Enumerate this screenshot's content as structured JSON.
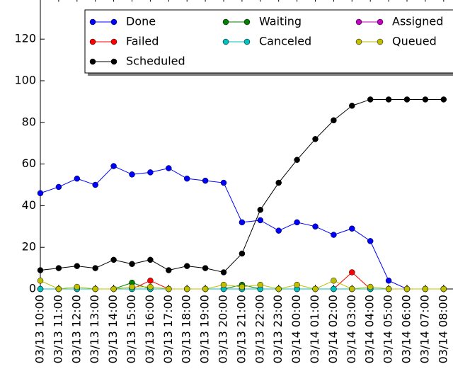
{
  "chart_data": {
    "type": "line",
    "categories": [
      "03/13 10:00",
      "03/13 11:00",
      "03/13 12:00",
      "03/13 13:00",
      "03/13 14:00",
      "03/13 15:00",
      "03/13 16:00",
      "03/13 17:00",
      "03/13 18:00",
      "03/13 19:00",
      "03/13 20:00",
      "03/13 21:00",
      "03/13 22:00",
      "03/13 23:00",
      "03/14 00:00",
      "03/14 01:00",
      "03/14 02:00",
      "03/14 03:00",
      "03/14 04:00",
      "03/14 05:00",
      "03/14 06:00",
      "03/14 07:00",
      "03/14 08:00"
    ],
    "series": [
      {
        "name": "Done",
        "color": "#0000ff",
        "values": [
          46,
          49,
          53,
          50,
          59,
          55,
          56,
          58,
          53,
          52,
          51,
          32,
          33,
          28,
          32,
          30,
          26,
          29,
          23,
          4,
          0,
          0,
          0
        ]
      },
      {
        "name": "Waiting",
        "color": "#007f00",
        "values": [
          0,
          0,
          0,
          0,
          0,
          3,
          0,
          0,
          0,
          0,
          0,
          2,
          0,
          0,
          0,
          0,
          0,
          0,
          0,
          0,
          0,
          0,
          0
        ]
      },
      {
        "name": "Assigned",
        "color": "#bf00bf",
        "values": [
          0,
          0,
          0,
          0,
          0,
          0,
          0,
          0,
          0,
          0,
          0,
          0,
          0,
          0,
          0,
          0,
          0,
          0,
          0,
          0,
          0,
          0,
          0
        ]
      },
      {
        "name": "Failed",
        "color": "#ff0000",
        "values": [
          0,
          0,
          0,
          0,
          0,
          0,
          4,
          0,
          0,
          0,
          0,
          0,
          0,
          0,
          0,
          0,
          0,
          8,
          0,
          0,
          0,
          0,
          0
        ]
      },
      {
        "name": "Canceled",
        "color": "#00bfbf",
        "values": [
          0,
          0,
          0,
          0,
          0,
          0,
          0,
          0,
          0,
          0,
          0,
          0,
          0,
          0,
          0,
          0,
          0,
          0,
          0,
          0,
          0,
          0,
          0
        ]
      },
      {
        "name": "Queued",
        "color": "#bfbf00",
        "values": [
          4,
          0,
          1,
          0,
          0,
          1,
          1,
          0,
          0,
          0,
          2,
          1,
          2,
          0,
          2,
          0,
          4,
          0,
          1,
          0,
          0,
          0,
          0
        ]
      },
      {
        "name": "Scheduled",
        "color": "#000000",
        "values": [
          9,
          10,
          11,
          10,
          14,
          12,
          14,
          9,
          11,
          10,
          8,
          17,
          38,
          51,
          62,
          72,
          81,
          88,
          91,
          91,
          91,
          91,
          91
        ]
      }
    ],
    "ylim": [
      0,
      140
    ],
    "yticks": [
      0,
      20,
      40,
      60,
      80,
      100,
      120
    ],
    "legend": "upper right"
  }
}
